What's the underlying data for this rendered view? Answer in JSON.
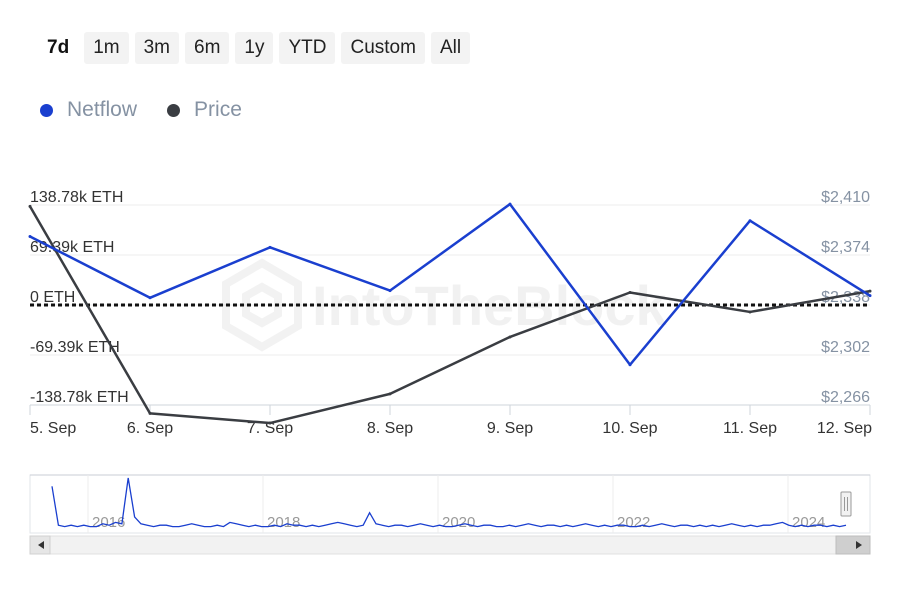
{
  "range_buttons": [
    "7d",
    "1m",
    "3m",
    "6m",
    "1y",
    "YTD",
    "Custom",
    "All"
  ],
  "active_range": "7d",
  "watermark": "IntoTheBlock",
  "colors": {
    "netflow": "#1a3fcf",
    "price": "#3a3d42",
    "zero_line": "#111111"
  },
  "chart_data": {
    "type": "line",
    "x": [
      "5. Sep",
      "6. Sep",
      "7. Sep",
      "8. Sep",
      "9. Sep",
      "10. Sep",
      "11. Sep",
      "12. Sep"
    ],
    "series": [
      {
        "name": "Netflow",
        "axis": "left",
        "values": [
          95000,
          10000,
          80000,
          20000,
          140000,
          -83000,
          117000,
          13000
        ]
      },
      {
        "name": "Price",
        "axis": "right",
        "values": [
          2409,
          2260,
          2253,
          2274,
          2315,
          2347,
          2333,
          2348
        ]
      }
    ],
    "y_left": {
      "ticks": [
        "138.78k ETH",
        "69.39k ETH",
        "0 ETH",
        "-69.39k ETH",
        "-138.78k ETH"
      ],
      "range": [
        -138780,
        138780
      ]
    },
    "y_right": {
      "ticks": [
        "$2,410",
        "$2,374",
        "$2,338",
        "$2,302",
        "$2,266"
      ],
      "range": [
        2266,
        2410
      ]
    },
    "legend": "top-left",
    "navigator": {
      "years": [
        "2016",
        "2018",
        "2020",
        "2022",
        "2024"
      ],
      "values": [
        30,
        2,
        1,
        2,
        1,
        2,
        1,
        1,
        3,
        2,
        4,
        3,
        36,
        8,
        3,
        2,
        1,
        2,
        2,
        1,
        1,
        2,
        3,
        2,
        1,
        1,
        2,
        1,
        4,
        3,
        2,
        1,
        2,
        1,
        1,
        2,
        1,
        3,
        2,
        2,
        1,
        2,
        1,
        2,
        3,
        4,
        3,
        2,
        1,
        2,
        11,
        3,
        2,
        1,
        2,
        2,
        1,
        2,
        3,
        2,
        1,
        2,
        1,
        1,
        2,
        3,
        2,
        1,
        2,
        2,
        1,
        1,
        2,
        1,
        2,
        3,
        2,
        1,
        2,
        2,
        1,
        2,
        1,
        2,
        3,
        2,
        1,
        2,
        1,
        2,
        2,
        1,
        1,
        2,
        1,
        2,
        3,
        2,
        1,
        2,
        2,
        1,
        2,
        1,
        2,
        1,
        2,
        3,
        2,
        1,
        2,
        1,
        2,
        2,
        3,
        4,
        2,
        1,
        2,
        1,
        2,
        2,
        1,
        2,
        1,
        2
      ]
    }
  }
}
